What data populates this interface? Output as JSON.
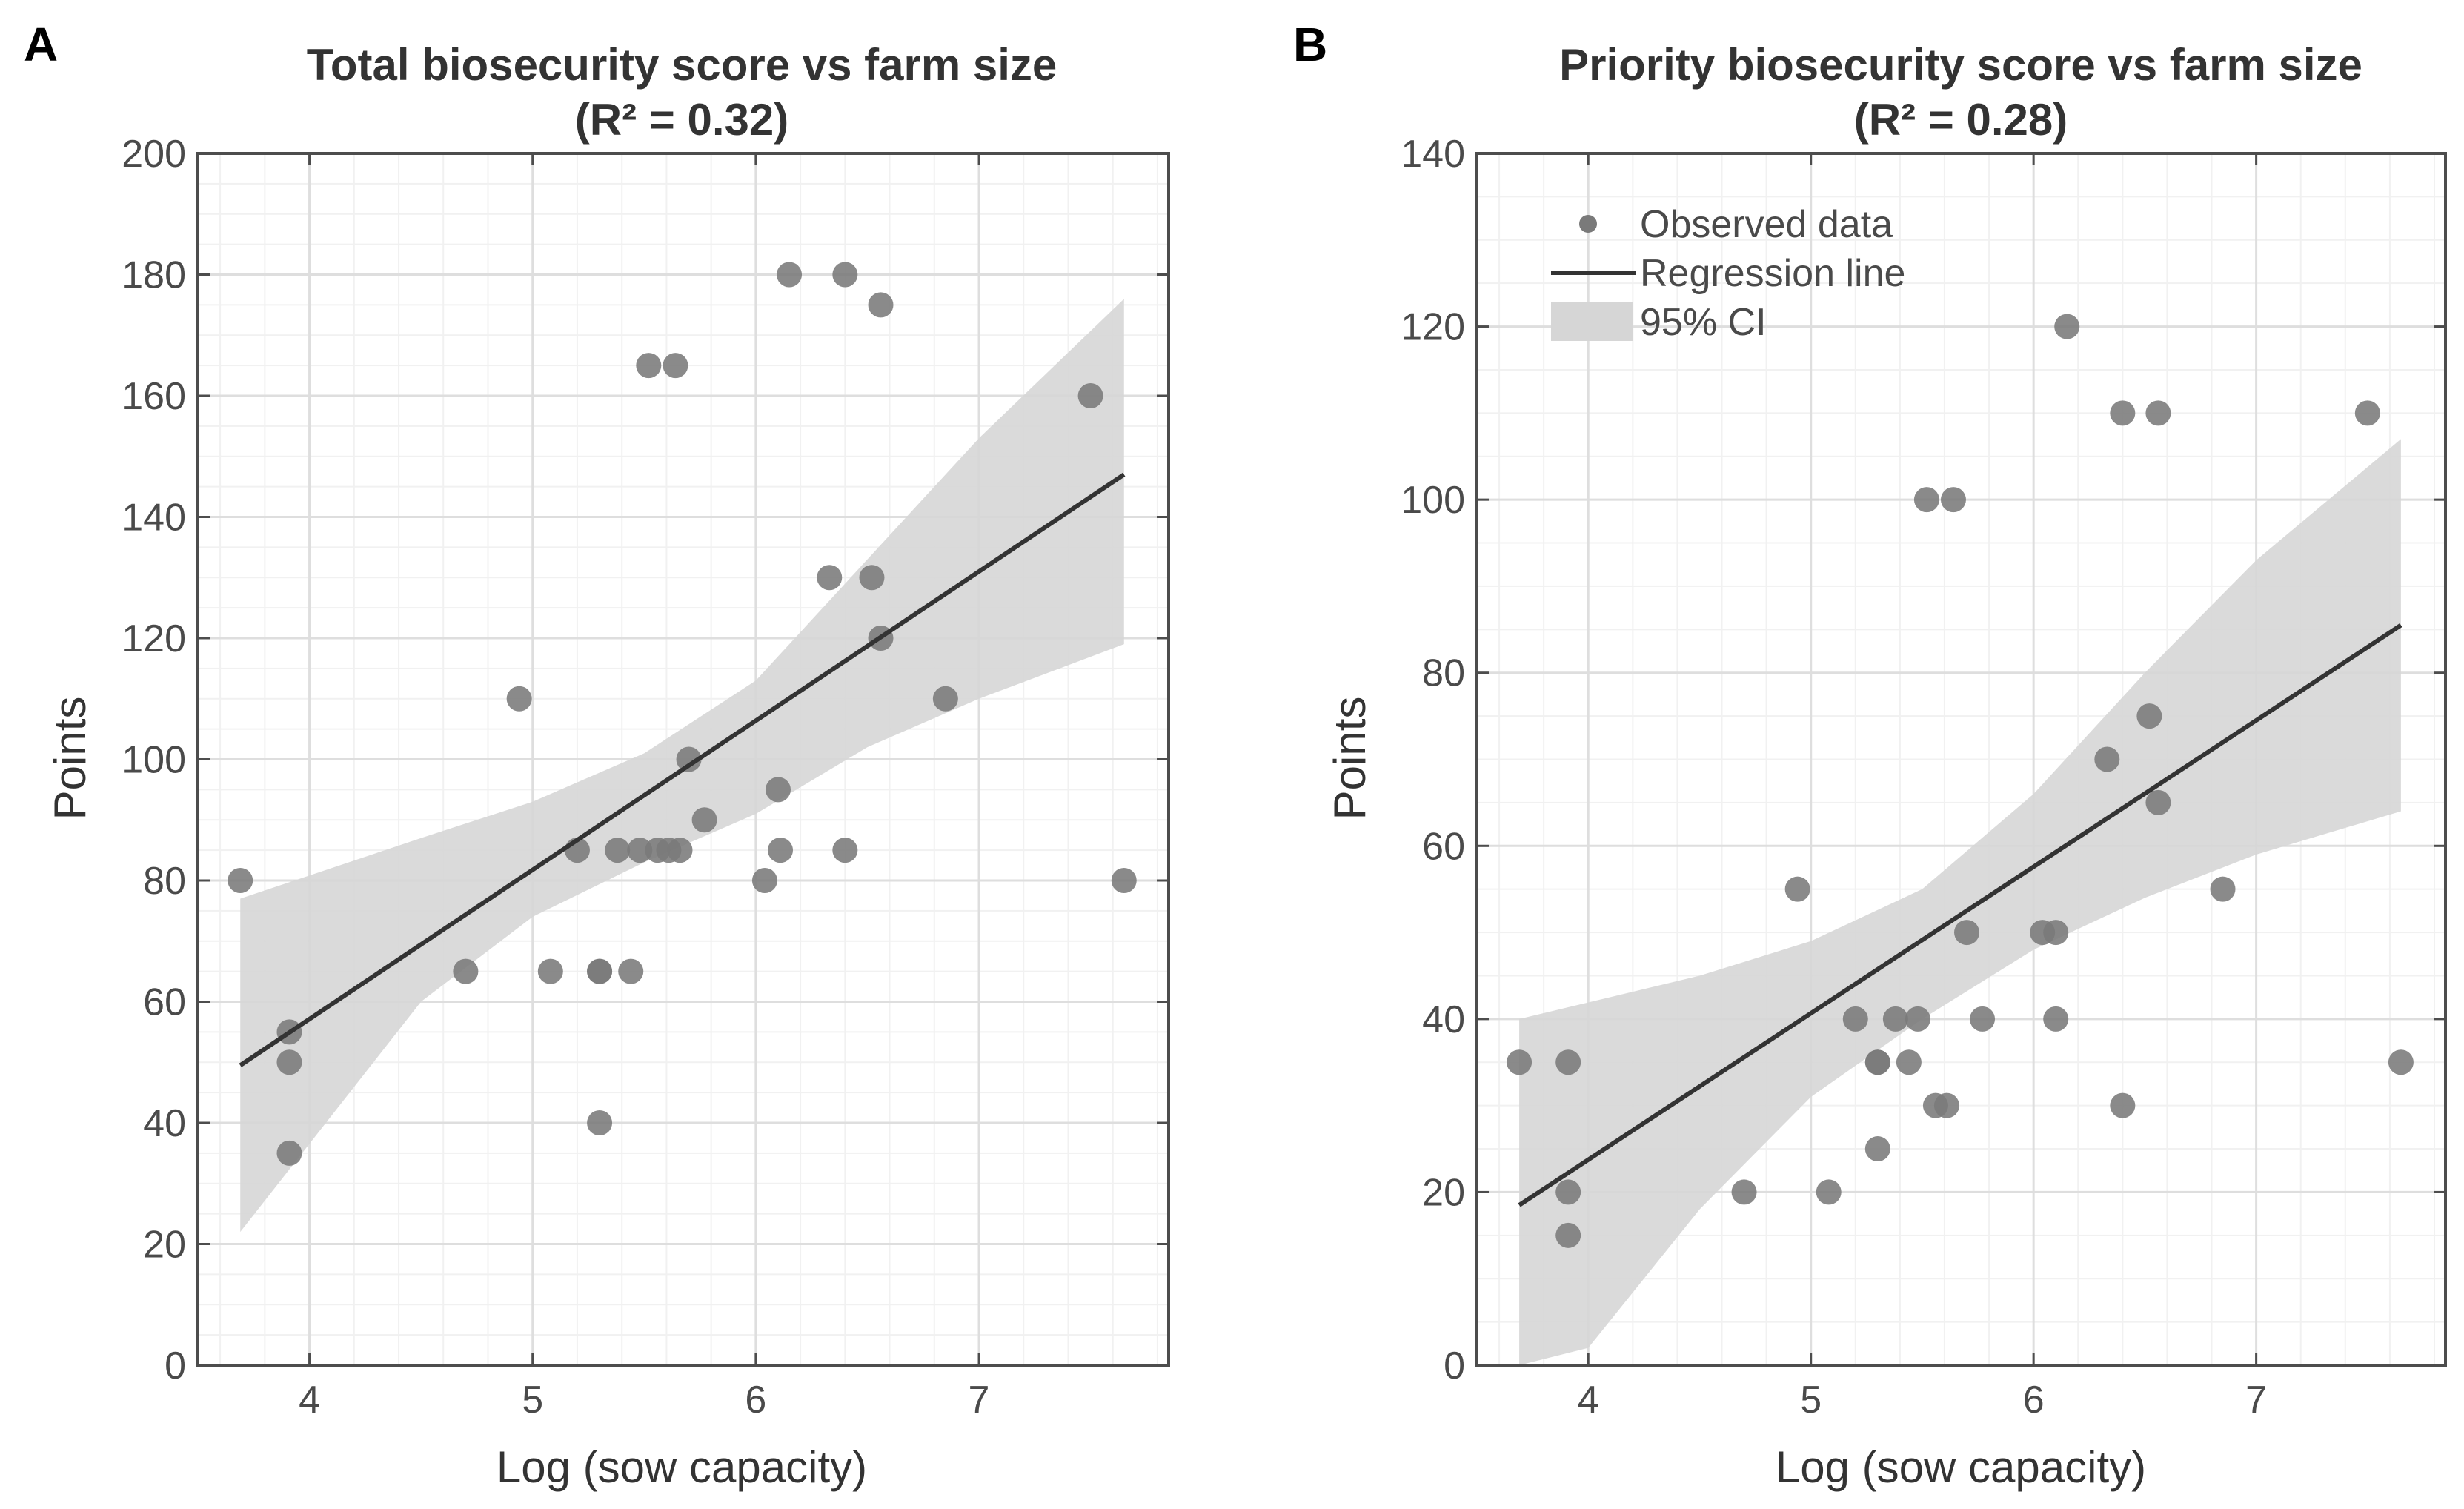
{
  "chart_data": [
    {
      "type": "scatter",
      "panel_label": "A",
      "title": "Total biosecurity score vs farm size",
      "subtitle": "(R² = 0.32)",
      "xlabel": "Log (sow capacity)",
      "ylabel": "Points",
      "xlim": [
        3.5,
        7.85
      ],
      "ylim": [
        0,
        200
      ],
      "xticks": [
        "4",
        "5",
        "6",
        "7"
      ],
      "yticks": [
        "0",
        "20",
        "40",
        "60",
        "80",
        "100",
        "120",
        "140",
        "160",
        "180",
        "200"
      ],
      "grid": true,
      "colors": {
        "point": "#7a7a7a",
        "line": "#333333",
        "ci": "#d6d6d6"
      },
      "series": [
        {
          "type": "scatter",
          "points": [
            [
              3.69,
              80
            ],
            [
              3.91,
              55
            ],
            [
              3.91,
              50
            ],
            [
              3.91,
              35
            ],
            [
              4.7,
              65
            ],
            [
              4.94,
              110
            ],
            [
              5.08,
              65
            ],
            [
              5.2,
              85
            ],
            [
              5.3,
              65
            ],
            [
              5.3,
              65
            ],
            [
              5.3,
              40
            ],
            [
              5.38,
              85
            ],
            [
              5.44,
              65
            ],
            [
              5.48,
              85
            ],
            [
              5.52,
              165
            ],
            [
              5.56,
              85
            ],
            [
              5.61,
              85
            ],
            [
              5.64,
              165
            ],
            [
              5.66,
              85
            ],
            [
              5.7,
              100
            ],
            [
              5.77,
              90
            ],
            [
              6.04,
              80
            ],
            [
              6.1,
              95
            ],
            [
              6.11,
              85
            ],
            [
              6.15,
              180
            ],
            [
              6.33,
              130
            ],
            [
              6.4,
              180
            ],
            [
              6.4,
              85
            ],
            [
              6.52,
              130
            ],
            [
              6.56,
              175
            ],
            [
              6.56,
              120
            ],
            [
              6.85,
              110
            ],
            [
              7.5,
              160
            ],
            [
              7.65,
              80
            ]
          ]
        },
        {
          "type": "line",
          "points": [
            [
              3.69,
              49.5
            ],
            [
              7.65,
              147
            ]
          ]
        },
        {
          "type": "area",
          "upper": [
            [
              3.69,
              77
            ],
            [
              4.5,
              87
            ],
            [
              5.0,
              93
            ],
            [
              5.5,
              101
            ],
            [
              6.0,
              113
            ],
            [
              6.5,
              133
            ],
            [
              7.0,
              153
            ],
            [
              7.65,
              176
            ]
          ],
          "lower": [
            [
              3.69,
              22
            ],
            [
              4.5,
              60
            ],
            [
              5.0,
              74
            ],
            [
              5.5,
              83
            ],
            [
              6.0,
              91
            ],
            [
              6.5,
              102
            ],
            [
              7.0,
              110
            ],
            [
              7.65,
              119
            ]
          ]
        }
      ]
    },
    {
      "type": "scatter",
      "panel_label": "B",
      "title": "Priority biosecurity score vs farm size",
      "subtitle": "(R² = 0.28)",
      "xlabel": "Log (sow capacity)",
      "ylabel": "Points",
      "xlim": [
        3.5,
        7.85
      ],
      "ylim": [
        0,
        140
      ],
      "xticks": [
        "4",
        "5",
        "6",
        "7"
      ],
      "yticks": [
        "0",
        "20",
        "40",
        "60",
        "80",
        "100",
        "120",
        "140"
      ],
      "grid": true,
      "legend": {
        "position": "top-left",
        "items": [
          {
            "label": "Observed data",
            "kind": "point"
          },
          {
            "label": "Regression line",
            "kind": "line"
          },
          {
            "label": "95% CI",
            "kind": "area"
          }
        ]
      },
      "colors": {
        "point": "#7a7a7a",
        "line": "#333333",
        "ci": "#d6d6d6"
      },
      "series": [
        {
          "type": "scatter",
          "points": [
            [
              3.69,
              35
            ],
            [
              3.91,
              35
            ],
            [
              3.91,
              20
            ],
            [
              3.91,
              15
            ],
            [
              4.7,
              20
            ],
            [
              4.94,
              55
            ],
            [
              5.08,
              20
            ],
            [
              5.2,
              40
            ],
            [
              5.3,
              35
            ],
            [
              5.3,
              35
            ],
            [
              5.3,
              25
            ],
            [
              5.38,
              40
            ],
            [
              5.44,
              35
            ],
            [
              5.48,
              40
            ],
            [
              5.52,
              100
            ],
            [
              5.56,
              30
            ],
            [
              5.61,
              30
            ],
            [
              5.64,
              100
            ],
            [
              5.7,
              50
            ],
            [
              5.77,
              40
            ],
            [
              6.04,
              50
            ],
            [
              6.1,
              50
            ],
            [
              6.1,
              40
            ],
            [
              6.15,
              120
            ],
            [
              6.33,
              70
            ],
            [
              6.4,
              110
            ],
            [
              6.4,
              30
            ],
            [
              6.52,
              75
            ],
            [
              6.56,
              110
            ],
            [
              6.56,
              65
            ],
            [
              6.85,
              55
            ],
            [
              7.5,
              110
            ],
            [
              7.65,
              35
            ]
          ]
        },
        {
          "type": "line",
          "points": [
            [
              3.69,
              18.5
            ],
            [
              7.65,
              85.5
            ]
          ]
        },
        {
          "type": "area",
          "upper": [
            [
              3.69,
              40
            ],
            [
              4.5,
              45
            ],
            [
              5.0,
              49
            ],
            [
              5.5,
              55
            ],
            [
              6.0,
              66
            ],
            [
              6.5,
              80
            ],
            [
              7.0,
              93
            ],
            [
              7.65,
              107
            ]
          ],
          "lower": [
            [
              3.69,
              0
            ],
            [
              4.0,
              2
            ],
            [
              4.5,
              18
            ],
            [
              5.0,
              31
            ],
            [
              5.5,
              40
            ],
            [
              6.0,
              48
            ],
            [
              6.5,
              54
            ],
            [
              7.0,
              59
            ],
            [
              7.65,
              64
            ]
          ]
        }
      ]
    }
  ]
}
